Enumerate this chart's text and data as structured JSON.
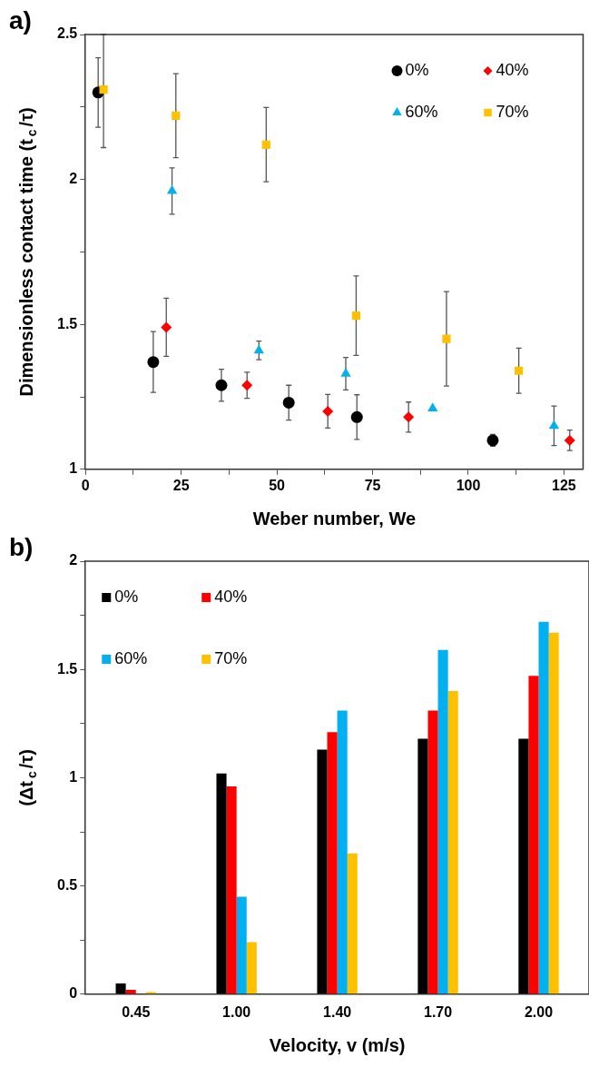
{
  "chart_data": [
    {
      "type": "scatter",
      "title": "a)",
      "xlabel": "Weber number, We",
      "ylabel": "Dimensionless contact time (t$_{c}$/τ)",
      "xlim": [
        0,
        130
      ],
      "xticks": [
        0,
        {
          "value": 12.5,
          "label": null
        },
        25,
        {
          "value": 37.5,
          "label": null
        },
        50,
        {
          "value": 62.5,
          "label": null
        },
        75,
        {
          "value": 87.5,
          "label": null
        },
        100,
        {
          "value": 112.5,
          "label": null
        },
        125
      ],
      "ylim": [
        1,
        2.5
      ],
      "yticks": [
        1,
        {
          "value": 1.25,
          "label": null
        },
        1.5,
        {
          "value": 1.75,
          "label": null
        },
        2,
        {
          "value": 2.25,
          "label": null
        },
        2.5
      ],
      "grid": false,
      "legend": "top right",
      "series": [
        {
          "name": "0%",
          "color": "#000000",
          "marker": "circle",
          "x": [
            3.3,
            17.7,
            35.5,
            53.1,
            70.9,
            106.4
          ],
          "values": [
            2.3,
            1.37,
            1.29,
            1.23,
            1.18,
            1.1
          ],
          "errors": [
            0.12,
            0.105,
            0.055,
            0.06,
            0.077,
            0.02
          ]
        },
        {
          "name": "40%",
          "color": "#ff0000",
          "marker": "diamond",
          "x": [
            null,
            21.1,
            42.2,
            63.3,
            84.4,
            126.5
          ],
          "values": [
            null,
            1.49,
            1.29,
            1.2,
            1.18,
            1.1
          ],
          "errors": [
            null,
            0.1,
            0.045,
            0.058,
            0.052,
            0.035
          ]
        },
        {
          "name": "60%",
          "color": "#00b0f0",
          "marker": "triangle",
          "x": [
            null,
            22.6,
            45.3,
            68,
            90.7,
            122.4
          ],
          "values": [
            null,
            1.96,
            1.41,
            1.33,
            1.21,
            1.15
          ],
          "errors": [
            null,
            0.08,
            0.032,
            0.056,
            null,
            0.068
          ]
        },
        {
          "name": "70%",
          "color": "#ffc000",
          "marker": "square",
          "x": [
            4.7,
            23.6,
            47.2,
            70.7,
            94.3,
            113.2
          ],
          "values": [
            2.31,
            2.22,
            2.12,
            1.53,
            1.45,
            1.34
          ],
          "errors": [
            [
              2.11,
              2.5
            ],
            0.145,
            0.128,
            0.137,
            0.163,
            0.078
          ]
        }
      ]
    },
    {
      "type": "bar",
      "title": "b)",
      "xlabel": "Velocity, v (m/s)",
      "ylabel": "(Δt$_{c}$/τ)",
      "categories": [
        "0.45",
        "1.00",
        "1.40",
        "1.70",
        "2.00"
      ],
      "ylim": [
        0,
        2
      ],
      "yticks": [
        0,
        {
          "value": 0.25,
          "label": null
        },
        0.5,
        {
          "value": 0.75,
          "label": null
        },
        1,
        {
          "value": 1.25,
          "label": null
        },
        1.5,
        {
          "value": 1.75,
          "label": null
        },
        2
      ],
      "grid": false,
      "legend": "top left",
      "series": [
        {
          "name": "0%",
          "color": "#000000",
          "values": [
            0.05,
            1.02,
            1.13,
            1.18,
            1.18
          ]
        },
        {
          "name": "40%",
          "color": "#ff0000",
          "values": [
            0.02,
            0.96,
            1.21,
            1.31,
            1.47
          ]
        },
        {
          "name": "60%",
          "color": "#00b0f0",
          "values": [
            0,
            0.45,
            1.31,
            1.59,
            1.72
          ]
        },
        {
          "name": "70%",
          "color": "#ffc000",
          "values": [
            0.01,
            0.24,
            0.65,
            1.4,
            1.67
          ]
        }
      ]
    }
  ]
}
